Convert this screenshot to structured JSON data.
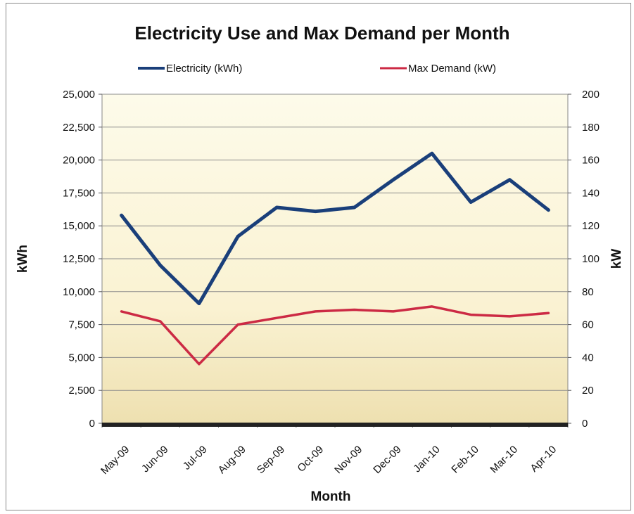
{
  "chart_data": {
    "type": "line",
    "title": "Electricity Use and Max Demand per Month",
    "xlabel": "Month",
    "ylabel": "kWh",
    "y2label": "kW",
    "categories": [
      "May-09",
      "Jun-09",
      "Jul-09",
      "Aug-09",
      "Sep-09",
      "Oct-09",
      "Nov-09",
      "Dec-09",
      "Jan-10",
      "Feb-10",
      "Mar-10",
      "Apr-10"
    ],
    "ylim": [
      0,
      25000
    ],
    "y2lim": [
      0,
      200
    ],
    "yticks": [
      "0",
      "2,500",
      "5,000",
      "7,500",
      "10,000",
      "12,500",
      "15,000",
      "17,500",
      "20,000",
      "22,500",
      "25,000"
    ],
    "y2ticks": [
      "0",
      "20",
      "40",
      "60",
      "80",
      "100",
      "120",
      "140",
      "160",
      "180",
      "200"
    ],
    "grid": true,
    "legend_position": "top",
    "series": [
      {
        "name": "Electricity (kWh)",
        "axis": "left",
        "color": "#1a3f7a",
        "values": [
          15800,
          12000,
          9100,
          14200,
          16400,
          16100,
          16400,
          18500,
          20500,
          16800,
          18500,
          16200
        ]
      },
      {
        "name": "Max Demand (kW)",
        "axis": "right",
        "color": "#cc2a44",
        "values": [
          68,
          62,
          36,
          60,
          64,
          68,
          69,
          68,
          71,
          66,
          65,
          67
        ]
      }
    ]
  }
}
